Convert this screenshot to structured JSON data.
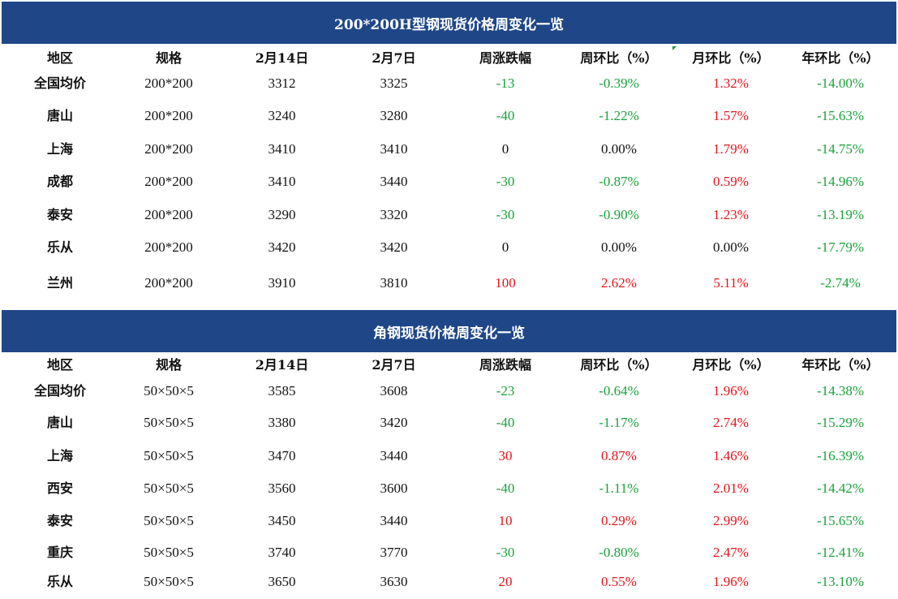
{
  "tables": [
    {
      "title": "200*200H型钢现货价格周变化一览",
      "headers": [
        "地区",
        "规格",
        "2月14日",
        "2月7日",
        "周涨跌幅",
        "周环比（%）",
        "月环比（%）",
        "年环比（%）"
      ],
      "rows": [
        [
          "全国均价",
          "200*200",
          "3312",
          "3325",
          "-13",
          "-0.39%",
          "1.32%",
          "-14.00%"
        ],
        [
          "唐山",
          "200*200",
          "3240",
          "3280",
          "-40",
          "-1.22%",
          "1.57%",
          "-15.63%"
        ],
        [
          "上海",
          "200*200",
          "3410",
          "3410",
          "0",
          "0.00%",
          "1.79%",
          "-14.75%"
        ],
        [
          "成都",
          "200*200",
          "3410",
          "3440",
          "-30",
          "-0.87%",
          "0.59%",
          "-14.96%"
        ],
        [
          "泰安",
          "200*200",
          "3290",
          "3320",
          "-30",
          "-0.90%",
          "1.23%",
          "-13.19%"
        ],
        [
          "乐从",
          "200*200",
          "3420",
          "3420",
          "0",
          "0.00%",
          "0.00%",
          "-17.79%"
        ],
        [
          "兰州",
          "200*200",
          "3910",
          "3810",
          "100",
          "2.62%",
          "5.11%",
          "-2.74%"
        ]
      ]
    },
    {
      "title": "角钢现货价格周变化一览",
      "headers": [
        "地区",
        "规格",
        "2月14日",
        "2月7日",
        "周涨跌幅",
        "周环比（%）",
        "月环比（%）",
        "年环比（%）"
      ],
      "rows": [
        [
          "全国均价",
          "50×50×5",
          "3585",
          "3608",
          "-23",
          "-0.64%",
          "1.96%",
          "-14.38%"
        ],
        [
          "唐山",
          "50×50×5",
          "3380",
          "3420",
          "-40",
          "-1.17%",
          "2.74%",
          "-15.29%"
        ],
        [
          "上海",
          "50×50×5",
          "3470",
          "3440",
          "30",
          "0.87%",
          "1.46%",
          "-16.39%"
        ],
        [
          "西安",
          "50×50×5",
          "3560",
          "3600",
          "-40",
          "-1.11%",
          "2.01%",
          "-14.42%"
        ],
        [
          "泰安",
          "50×50×5",
          "3450",
          "3440",
          "10",
          "0.29%",
          "2.99%",
          "-15.65%"
        ],
        [
          "重庆",
          "50×50×5",
          "3740",
          "3770",
          "-30",
          "-0.80%",
          "2.47%",
          "-12.41%"
        ],
        [
          "乐从",
          "50×50×5",
          "3650",
          "3630",
          "20",
          "0.55%",
          "1.96%",
          "-13.10%"
        ]
      ]
    }
  ],
  "colors": {
    "header_bg": "#1f4788",
    "negative": "#19a23a",
    "positive": "#e3141b",
    "neutral": "#111111"
  }
}
